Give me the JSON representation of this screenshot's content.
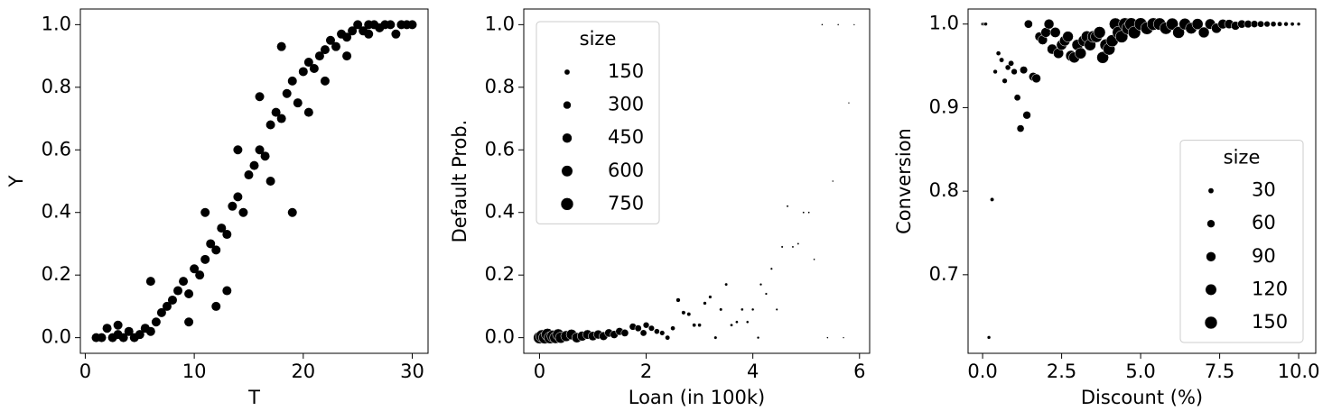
{
  "chart_data": [
    {
      "type": "scatter",
      "xlabel": "T",
      "ylabel": "Y",
      "color": "#000000",
      "xlim": [
        -0.45,
        31.45
      ],
      "ylim": [
        -0.05,
        1.05
      ],
      "xticks": [
        0,
        10,
        20,
        30
      ],
      "yticks": [
        {
          "value": 0,
          "label": "0.0"
        },
        0.2,
        0.4,
        0.6,
        0.8,
        {
          "value": 1,
          "label": "1.0"
        }
      ],
      "x": [
        1,
        1.5,
        2,
        2.5,
        3,
        3.5,
        4,
        4.5,
        5,
        5.5,
        6,
        6.5,
        7,
        7.5,
        8,
        8.5,
        9,
        9.5,
        10,
        10.5,
        11,
        11.5,
        12,
        12.5,
        13,
        13.5,
        14,
        14.5,
        15,
        15.5,
        16,
        16.5,
        17,
        17.5,
        18,
        18.5,
        19,
        19.5,
        20,
        20.5,
        21,
        21.5,
        22,
        22.5,
        23,
        23.5,
        24,
        24.5,
        25,
        25.5,
        26,
        26.5,
        27,
        27.5,
        28,
        28.5,
        29,
        29.5,
        30,
        6,
        11,
        19,
        18,
        13,
        16,
        9.5,
        12,
        14,
        20.5,
        22,
        24,
        26,
        3,
        17
      ],
      "y": [
        0,
        0,
        0.03,
        0,
        0.01,
        0,
        0.02,
        0,
        0.01,
        0.03,
        0.02,
        0.05,
        0.08,
        0.1,
        0.12,
        0.15,
        0.18,
        0.14,
        0.22,
        0.2,
        0.25,
        0.3,
        0.28,
        0.35,
        0.33,
        0.42,
        0.45,
        0.4,
        0.52,
        0.55,
        0.6,
        0.58,
        0.68,
        0.72,
        0.7,
        0.78,
        0.82,
        0.75,
        0.85,
        0.88,
        0.86,
        0.9,
        0.92,
        0.95,
        0.93,
        0.97,
        0.96,
        0.98,
        1,
        0.98,
        1,
        1,
        0.99,
        1,
        1,
        0.97,
        1,
        1,
        1,
        0.18,
        0.4,
        0.4,
        0.93,
        0.15,
        0.77,
        0.05,
        0.1,
        0.6,
        0.72,
        0.82,
        0.9,
        0.97,
        0.04,
        0.5
      ]
    },
    {
      "type": "scatter",
      "xlabel": "Loan (in 100k)",
      "ylabel": "Default Prob.",
      "color": "#000000",
      "xlim": [
        -0.295,
        6.19
      ],
      "ylim": [
        -0.05,
        1.05
      ],
      "xticks": [
        0,
        2,
        4,
        6
      ],
      "yticks": [
        {
          "value": 0,
          "label": "0.0"
        },
        0.2,
        0.4,
        0.6,
        0.8,
        {
          "value": 1,
          "label": "1.0"
        }
      ],
      "legend": {
        "title": "size",
        "sizes": [
          150,
          300,
          450,
          600,
          750
        ],
        "loc": "upper left"
      },
      "x": [
        0,
        0.05,
        0.1,
        0.15,
        0.2,
        0.25,
        0.3,
        0.35,
        0.4,
        0.5,
        0.6,
        0.7,
        0.8,
        0.9,
        1.0,
        1.1,
        1.2,
        1.3,
        1.4,
        1.5,
        1.6,
        1.75,
        1.85,
        1.95,
        2.0,
        2.1,
        2.2,
        2.3,
        2.4,
        2.5,
        2.6,
        2.7,
        2.8,
        2.9,
        3.0,
        3.1,
        3.2,
        3.3,
        3.4,
        3.5,
        3.6,
        3.7,
        3.8,
        3.9,
        4.0,
        4.1,
        4.15,
        4.25,
        4.35,
        4.45,
        4.55,
        4.65,
        4.75,
        4.85,
        4.95,
        5.05,
        5.15,
        5.3,
        5.4,
        5.5,
        5.6,
        5.7,
        5.8,
        5.9
      ],
      "y": [
        0,
        0.005,
        0,
        0.01,
        0,
        0.005,
        0,
        0.01,
        0,
        0.005,
        0.01,
        0,
        0.005,
        0.01,
        0.005,
        0.01,
        0.005,
        0.015,
        0.01,
        0.02,
        0.015,
        0.035,
        0.03,
        0.015,
        0.04,
        0.03,
        0.02,
        0.015,
        0,
        0.03,
        0.12,
        0.08,
        0.075,
        0.04,
        0.04,
        0.11,
        0.13,
        0,
        0.09,
        0.17,
        0.04,
        0.05,
        0.09,
        0.05,
        0.09,
        0,
        0.17,
        0.14,
        0.22,
        0.09,
        0.29,
        0.42,
        0.29,
        0.3,
        0.4,
        0.4,
        0.25,
        1.0,
        0,
        0.5,
        1.0,
        0,
        0.75,
        1.0
      ],
      "sizes": [
        700,
        750,
        720,
        700,
        680,
        650,
        640,
        600,
        580,
        550,
        520,
        480,
        450,
        420,
        400,
        380,
        350,
        320,
        300,
        280,
        260,
        230,
        210,
        200,
        180,
        160,
        140,
        120,
        110,
        100,
        90,
        80,
        75,
        70,
        65,
        60,
        55,
        50,
        48,
        45,
        42,
        40,
        38,
        36,
        34,
        32,
        30,
        28,
        26,
        25,
        24,
        22,
        21,
        20,
        19,
        18,
        17,
        16,
        15,
        14,
        14,
        13,
        12,
        12
      ]
    },
    {
      "type": "scatter",
      "xlabel": "Discount (%)",
      "ylabel": "Conversion",
      "color": "#000000",
      "xlim": [
        -0.46,
        10.54
      ],
      "ylim": [
        0.606,
        1.018
      ],
      "xticks": [
        {
          "value": 0,
          "label": "0.0"
        },
        2.5,
        {
          "value": 5,
          "label": "5.0"
        },
        7.5,
        {
          "value": 10,
          "label": "10.0"
        }
      ],
      "yticks": [
        0.7,
        0.8,
        0.9,
        {
          "value": 1,
          "label": "1.0"
        }
      ],
      "legend": {
        "title": "size",
        "sizes": [
          30,
          60,
          90,
          120,
          150
        ],
        "loc": "lower right"
      },
      "x": [
        0,
        0.05,
        0.1,
        0.2,
        0.3,
        0.4,
        0.5,
        0.6,
        0.7,
        0.8,
        0.9,
        1.0,
        1.1,
        1.2,
        1.3,
        1.4,
        1.45,
        1.6,
        1.7,
        1.8,
        1.9,
        2.0,
        2.1,
        2.2,
        2.3,
        2.4,
        2.5,
        2.6,
        2.7,
        2.8,
        2.9,
        3.0,
        3.1,
        3.2,
        3.3,
        3.4,
        3.5,
        3.6,
        3.7,
        3.8,
        3.9,
        4.0,
        4.1,
        4.2,
        4.3,
        4.4,
        4.5,
        4.6,
        4.7,
        4.8,
        5.0,
        5.2,
        5.4,
        5.6,
        5.8,
        6.0,
        6.2,
        6.4,
        6.6,
        6.8,
        7.0,
        7.2,
        7.4,
        7.6,
        7.8,
        8.0,
        8.2,
        8.4,
        8.6,
        8.8,
        9.0,
        9.2,
        9.4,
        9.6,
        9.8,
        10.0
      ],
      "y": [
        1,
        1,
        1,
        0.625,
        0.79,
        0.943,
        0.965,
        0.957,
        0.932,
        0.948,
        0.953,
        0.943,
        0.912,
        0.875,
        0.945,
        0.891,
        1.0,
        0.937,
        0.935,
        0.985,
        0.981,
        0.99,
        1.0,
        0.97,
        0.99,
        0.965,
        0.975,
        0.98,
        0.985,
        0.962,
        0.96,
        0.975,
        0.965,
        0.98,
        0.985,
        0.975,
        0.985,
        0.985,
        0.99,
        0.96,
        0.975,
        0.97,
        0.98,
        1.0,
        0.99,
        0.985,
        1.0,
        0.995,
        1.0,
        0.99,
        1.0,
        0.995,
        1.0,
        1.0,
        0.995,
        1.0,
        0.99,
        1.0,
        0.995,
        1.0,
        0.99,
        1.0,
        0.995,
        1.0,
        1.0,
        0.998,
        1.0,
        1.0,
        1.0,
        1.0,
        1.0,
        1.0,
        1.0,
        1.0,
        1.0,
        1.0
      ],
      "sizes": [
        10,
        10,
        12,
        12,
        15,
        18,
        20,
        22,
        25,
        28,
        30,
        35,
        40,
        50,
        55,
        60,
        65,
        70,
        75,
        80,
        85,
        90,
        92,
        95,
        98,
        100,
        100,
        105,
        108,
        110,
        112,
        115,
        118,
        120,
        122,
        125,
        128,
        130,
        130,
        132,
        134,
        136,
        138,
        140,
        142,
        144,
        146,
        148,
        150,
        150,
        150,
        148,
        146,
        144,
        140,
        136,
        132,
        128,
        122,
        116,
        110,
        104,
        96,
        88,
        80,
        72,
        64,
        56,
        48,
        40,
        34,
        28,
        22,
        18,
        14,
        12
      ]
    }
  ]
}
